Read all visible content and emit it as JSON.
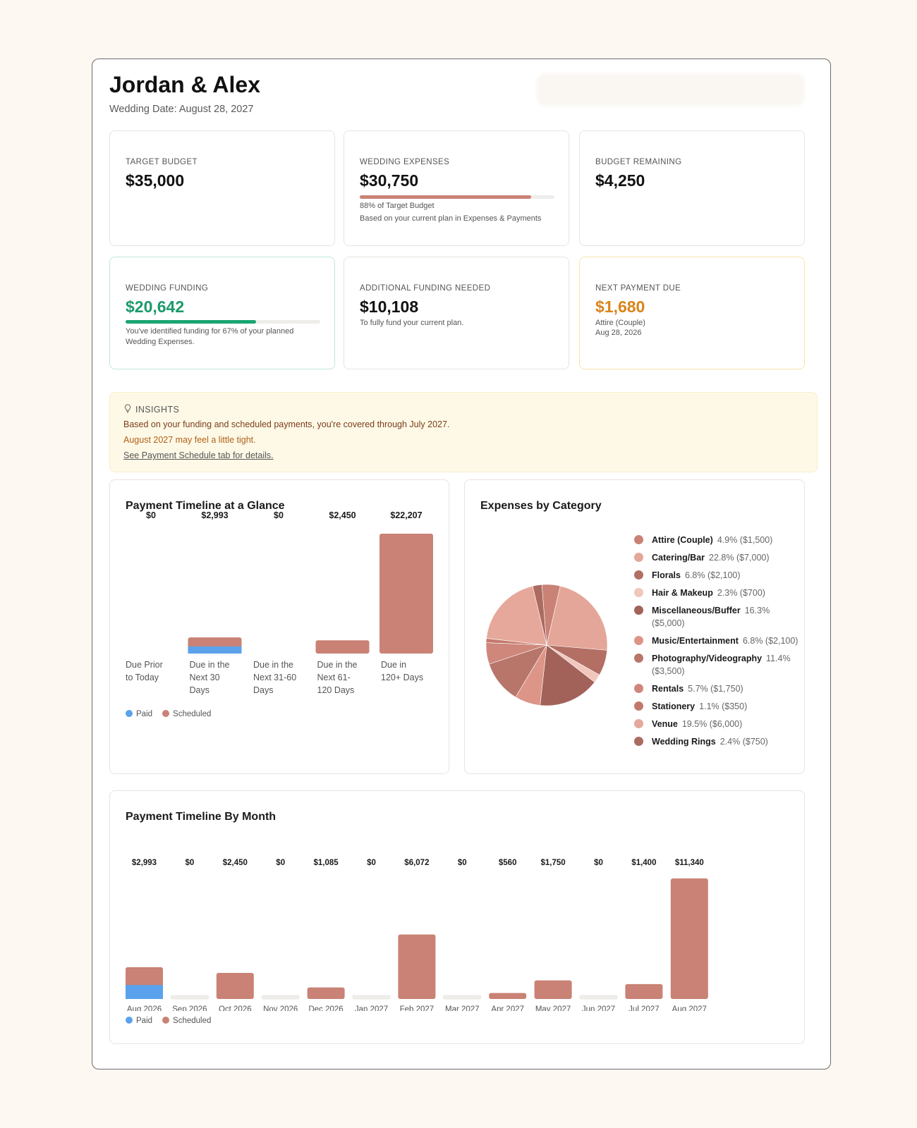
{
  "header": {
    "title": "Jordan & Alex",
    "subtitle": "Wedding Date: August 28, 2027"
  },
  "cards": {
    "target_budget": {
      "label": "TARGET BUDGET",
      "value": "$35,000"
    },
    "wedding_expenses": {
      "label": "WEDDING EXPENSES",
      "value": "$30,750",
      "progress": 0.88,
      "note1": "88% of Target Budget",
      "note2": "Based on your current plan in Expenses & Payments"
    },
    "budget_remaining": {
      "label": "BUDGET REMAINING",
      "value": "$4,250"
    },
    "wedding_funding": {
      "label": "WEDDING FUNDING",
      "value": "$20,642",
      "progress": 0.67,
      "note": "You've identified funding for 67% of your planned Wedding Expenses."
    },
    "additional_funding": {
      "label": "ADDITIONAL FUNDING NEEDED",
      "value": "$10,108",
      "note": "To fully fund your current plan."
    },
    "next_payment": {
      "label": "NEXT PAYMENT DUE",
      "value": "$1,680",
      "note1": "Attire (Couple)",
      "note2": "Aug 28, 2026"
    }
  },
  "insights": {
    "heading": "INSIGHTS",
    "line1": "Based on your funding and scheduled payments, you're covered through July 2027.",
    "line2": "August 2027 may feel a little tight.",
    "link": "See Payment Schedule tab for details."
  },
  "colors": {
    "paid": "#5aa2ec",
    "scheduled": "#c98275",
    "green": "#1aa571",
    "orange": "#d9841a",
    "empty_bar": "#f0eeeb"
  },
  "legend": {
    "paid": "Paid",
    "scheduled": "Scheduled"
  },
  "chart_data": [
    {
      "type": "bar",
      "title": "Payment Timeline at a Glance",
      "categories": [
        "Due Prior to Today",
        "Due in the Next 30 Days",
        "Due in the Next 31-60 Days",
        "Due in the Next 61-120 Days",
        "Due in 120+ Days"
      ],
      "category_lines": [
        [
          "Due Prior",
          "to Today"
        ],
        [
          "Due in the",
          "Next 30",
          "Days"
        ],
        [
          "Due in the",
          "Next 31-60",
          "Days"
        ],
        [
          "Due in the",
          "Next 61-",
          "120 Days"
        ],
        [
          "Due in",
          "120+ Days"
        ]
      ],
      "labels": [
        "$0",
        "$2,993",
        "$0",
        "$2,450",
        "$22,207"
      ],
      "series": [
        {
          "name": "Paid",
          "values": [
            0,
            1313,
            0,
            0,
            0
          ]
        },
        {
          "name": "Scheduled",
          "values": [
            0,
            1680,
            0,
            2450,
            22207
          ]
        }
      ],
      "stacked": true
    },
    {
      "type": "pie",
      "title": "Expenses by Category",
      "slices": [
        {
          "name": "Attire (Couple)",
          "pct": "4.9%",
          "amount": "($1,500)",
          "value": 1500,
          "color": "#c98275"
        },
        {
          "name": "Catering/Bar",
          "pct": "22.8%",
          "amount": "($7,000)",
          "value": 7000,
          "color": "#e4a698"
        },
        {
          "name": "Florals",
          "pct": "6.8%",
          "amount": "($2,100)",
          "value": 2100,
          "color": "#b36f64"
        },
        {
          "name": "Hair & Makeup",
          "pct": "2.3%",
          "amount": "($700)",
          "value": 700,
          "color": "#f1c6bb"
        },
        {
          "name": "Miscellaneous/Buffer",
          "pct": "16.3%",
          "amount": "($5,000)",
          "value": 5000,
          "color": "#a2625a"
        },
        {
          "name": "Music/Entertainment",
          "pct": "6.8%",
          "amount": "($2,100)",
          "value": 2100,
          "color": "#dc9587"
        },
        {
          "name": "Photography/Videography",
          "pct": "11.4%",
          "amount": "($3,500)",
          "value": 3500,
          "color": "#b8766b"
        },
        {
          "name": "Rentals",
          "pct": "5.7%",
          "amount": "($1,750)",
          "value": 1750,
          "color": "#cf877b"
        },
        {
          "name": "Stationery",
          "pct": "1.1%",
          "amount": "($350)",
          "value": 350,
          "color": "#c4786d"
        },
        {
          "name": "Venue",
          "pct": "19.5%",
          "amount": "($6,000)",
          "value": 6000,
          "color": "#e6a89b"
        },
        {
          "name": "Wedding Rings",
          "pct": "2.4%",
          "amount": "($750)",
          "value": 750,
          "color": "#ab6b61"
        }
      ]
    },
    {
      "type": "bar",
      "title": "Payment Timeline By Month",
      "categories": [
        "Aug 2026",
        "Sep 2026",
        "Oct 2026",
        "Nov 2026",
        "Dec 2026",
        "Jan 2027",
        "Feb 2027",
        "Mar 2027",
        "Apr 2027",
        "May 2027",
        "Jun 2027",
        "Jul 2027",
        "Aug 2027"
      ],
      "labels": [
        "$2,993",
        "$0",
        "$2,450",
        "$0",
        "$1,085",
        "$0",
        "$6,072",
        "$0",
        "$560",
        "$1,750",
        "$0",
        "$1,400",
        "$11,340"
      ],
      "series": [
        {
          "name": "Paid",
          "values": [
            1313,
            0,
            0,
            0,
            0,
            0,
            0,
            0,
            0,
            0,
            0,
            0,
            0
          ]
        },
        {
          "name": "Scheduled",
          "values": [
            1680,
            0,
            2450,
            0,
            1085,
            0,
            6072,
            0,
            560,
            1750,
            0,
            1400,
            11340
          ]
        }
      ],
      "stacked": true
    }
  ]
}
